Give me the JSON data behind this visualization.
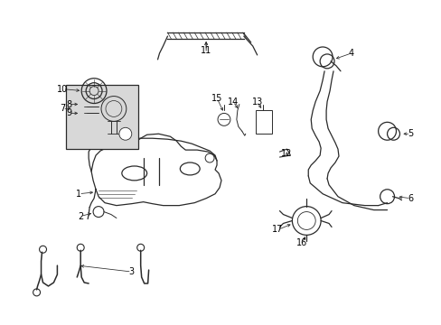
{
  "background_color": "#ffffff",
  "line_color": "#2a2a2a",
  "label_color": "#000000",
  "label_fontsize": 7.0,
  "fig_width": 4.89,
  "fig_height": 3.6
}
